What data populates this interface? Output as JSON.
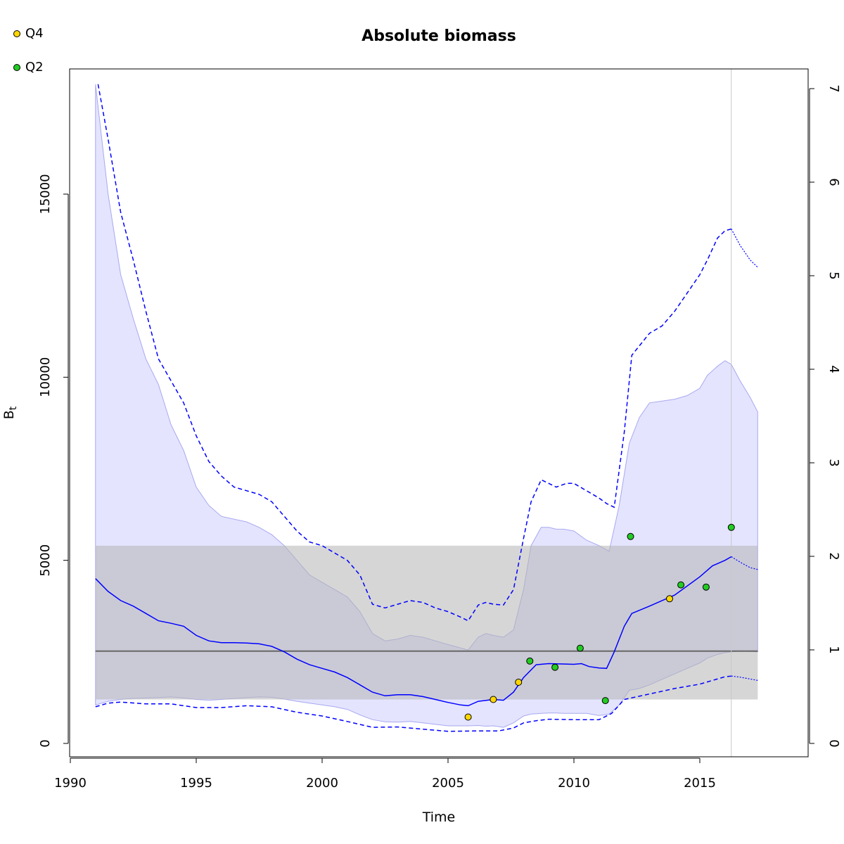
{
  "chart_data": {
    "type": "line",
    "title": "Absolute biomass",
    "xlabel": "Time",
    "ylabel": "B",
    "ylabel_sub": "t",
    "xlim": [
      1990,
      2019
    ],
    "ylim": [
      0,
      18000
    ],
    "y2lim": [
      0,
      7.2
    ],
    "x_ticks": [
      1990,
      1995,
      2000,
      2005,
      2010,
      2015
    ],
    "x_tick_labels": [
      "1990",
      "1995",
      "2000",
      "2005",
      "2010",
      "2015"
    ],
    "y_ticks": [
      0,
      5000,
      10000,
      15000
    ],
    "y_tick_labels": [
      "0",
      "5000",
      "10000",
      "15000"
    ],
    "y2_ticks": [
      0,
      1,
      2,
      3,
      4,
      5,
      6,
      7
    ],
    "y2_tick_labels": [
      "0",
      "1",
      "2",
      "3",
      "4",
      "5",
      "6",
      "7"
    ],
    "grid": false,
    "legend": {
      "placement": "top-left",
      "entries": [
        {
          "name": "Q4",
          "color": "#FFD700"
        },
        {
          "name": "Q2",
          "color": "#22CC22"
        }
      ]
    },
    "colors": {
      "line": "#0000FF",
      "ci_fill": "#E4E4FF",
      "ci_stroke": "#A8A8F0",
      "ref_band": "#B5B5B5",
      "ref_line": "#666666",
      "vline": "#C8C8C8"
    },
    "series": [
      {
        "role": "estimate",
        "x": [
          1991.0,
          1991.5,
          1992.0,
          1992.5,
          1993.0,
          1993.5,
          1994.0,
          1994.5,
          1995.0,
          1995.5,
          1996.0,
          1996.5,
          1997.0,
          1997.5,
          1998.0,
          1998.5,
          1999.0,
          1999.5,
          2000.0,
          2000.5,
          2001.0,
          2001.5,
          2002.0,
          2002.5,
          2003.0,
          2003.5,
          2004.0,
          2004.5,
          2005.0,
          2005.5,
          2005.8,
          2006.2,
          2006.8,
          2007.2,
          2007.6,
          2008.0,
          2008.5,
          2009.0,
          2009.5,
          2010.0,
          2010.3,
          2010.6,
          2011.0,
          2011.3,
          2011.6,
          2012.0,
          2012.3,
          2013.0,
          2013.5,
          2014.0,
          2014.5,
          2015.0,
          2015.5,
          2016.0,
          2016.25
        ],
        "y": [
          4500,
          4150,
          3900,
          3750,
          3550,
          3350,
          3280,
          3200,
          2950,
          2800,
          2750,
          2750,
          2740,
          2720,
          2650,
          2500,
          2300,
          2150,
          2050,
          1950,
          1800,
          1600,
          1400,
          1300,
          1330,
          1330,
          1280,
          1200,
          1120,
          1050,
          1030,
          1150,
          1200,
          1180,
          1400,
          1800,
          2150,
          2180,
          2170,
          2160,
          2180,
          2100,
          2060,
          2050,
          2500,
          3200,
          3550,
          3750,
          3900,
          4050,
          4300,
          4550,
          4850,
          5000,
          5100
        ]
      },
      {
        "role": "estimate-prediction",
        "x": [
          2016.25,
          2016.6,
          2017.0,
          2017.3
        ],
        "y": [
          5100,
          4950,
          4800,
          4750
        ]
      },
      {
        "role": "ci-lower-dashed",
        "x": [
          1991.0,
          1991.5,
          1992.0,
          1993.0,
          1994.0,
          1995.0,
          1996.0,
          1997.0,
          1998.0,
          1999.0,
          2000.0,
          2001.0,
          2002.0,
          2003.0,
          2004.0,
          2005.0,
          2006.0,
          2007.0,
          2007.6,
          2008.0,
          2008.5,
          2009.0,
          2010.0,
          2011.0,
          2011.5,
          2012.0,
          2013.0,
          2014.0,
          2015.0,
          2016.0,
          2016.25
        ],
        "y": [
          1000,
          1100,
          1130,
          1080,
          1080,
          980,
          980,
          1030,
          1000,
          850,
          750,
          600,
          440,
          450,
          390,
          330,
          340,
          340,
          420,
          560,
          620,
          660,
          650,
          650,
          820,
          1200,
          1350,
          1500,
          1620,
          1820,
          1840
        ]
      },
      {
        "role": "ci-lower-prediction",
        "x": [
          2016.25,
          2016.6,
          2017.0,
          2017.3
        ],
        "y": [
          1840,
          1810,
          1760,
          1720
        ]
      },
      {
        "role": "ci-upper-dashed",
        "x": [
          1991.1,
          1991.5,
          1992.0,
          1992.5,
          1993.0,
          1993.5,
          1994.0,
          1994.5,
          1995.0,
          1995.5,
          1996.0,
          1996.5,
          1997.0,
          1997.5,
          1998.0,
          1998.5,
          1999.0,
          1999.5,
          2000.0,
          2000.5,
          2001.0,
          2001.5,
          2002.0,
          2002.5,
          2003.0,
          2003.5,
          2004.0,
          2004.5,
          2005.0,
          2005.5,
          2005.8,
          2006.2,
          2006.5,
          2006.8,
          2007.2,
          2007.6,
          2008.0,
          2008.3,
          2008.7,
          2009.0,
          2009.3,
          2009.7,
          2010.0,
          2010.5,
          2011.0,
          2011.3,
          2011.6,
          2012.0,
          2012.3,
          2013.0,
          2013.5,
          2014.0,
          2014.5,
          2015.0,
          2015.3,
          2015.7,
          2016.0,
          2016.25
        ],
        "y": [
          18000,
          16500,
          14500,
          13200,
          11800,
          10500,
          9900,
          9300,
          8400,
          7700,
          7300,
          7000,
          6900,
          6800,
          6600,
          6200,
          5800,
          5500,
          5400,
          5200,
          5000,
          4600,
          3800,
          3700,
          3800,
          3900,
          3850,
          3700,
          3600,
          3450,
          3350,
          3780,
          3850,
          3800,
          3780,
          4200,
          5600,
          6600,
          7200,
          7100,
          7000,
          7100,
          7100,
          6900,
          6700,
          6550,
          6450,
          8500,
          10600,
          11200,
          11400,
          11800,
          12300,
          12800,
          13200,
          13800,
          14000,
          14050
        ]
      },
      {
        "role": "ci-upper-prediction",
        "x": [
          2016.25,
          2016.6,
          2017.0,
          2017.3
        ],
        "y": [
          14050,
          13600,
          13200,
          13000
        ]
      }
    ],
    "ci_band": {
      "x": [
        1991.0,
        1991.5,
        1992.0,
        1992.5,
        1993.0,
        1993.5,
        1994.0,
        1994.5,
        1995.0,
        1995.5,
        1996.0,
        1997.0,
        1997.5,
        1998.0,
        1998.5,
        1999.0,
        1999.5,
        2000.0,
        2000.5,
        2001.0,
        2001.5,
        2002.0,
        2002.5,
        2003.0,
        2003.5,
        2004.0,
        2004.5,
        2005.0,
        2005.8,
        2006.2,
        2006.5,
        2006.8,
        2007.2,
        2007.6,
        2008.0,
        2008.3,
        2008.7,
        2009.0,
        2009.3,
        2009.6,
        2010.0,
        2010.5,
        2011.0,
        2011.4,
        2011.8,
        2012.2,
        2012.6,
        2013.0,
        2013.5,
        2014.0,
        2014.5,
        2015.0,
        2015.3,
        2015.7,
        2016.0,
        2016.25,
        2016.6,
        2017.0,
        2017.3
      ],
      "lower": [
        1050,
        1150,
        1200,
        1230,
        1240,
        1250,
        1270,
        1240,
        1200,
        1180,
        1200,
        1250,
        1270,
        1260,
        1210,
        1150,
        1100,
        1050,
        1000,
        930,
        780,
        650,
        590,
        580,
        600,
        560,
        520,
        480,
        480,
        490,
        470,
        480,
        440,
        560,
        750,
        800,
        820,
        830,
        830,
        820,
        820,
        820,
        760,
        800,
        1050,
        1450,
        1500,
        1600,
        1750,
        1900,
        2050,
        2200,
        2330,
        2430,
        2480,
        2500,
        2520,
        2510,
        2500
      ],
      "upper": [
        18000,
        15000,
        12800,
        11600,
        10500,
        9800,
        8700,
        8000,
        7000,
        6500,
        6200,
        6050,
        5900,
        5700,
        5400,
        5000,
        4600,
        4400,
        4200,
        4000,
        3600,
        3000,
        2800,
        2850,
        2950,
        2900,
        2800,
        2700,
        2550,
        2900,
        3000,
        2950,
        2900,
        3100,
        4200,
        5400,
        5900,
        5900,
        5850,
        5850,
        5800,
        5550,
        5400,
        5250,
        6500,
        8200,
        8900,
        9300,
        9350,
        9400,
        9500,
        9700,
        10050,
        10300,
        10450,
        10350,
        9900,
        9450,
        9050
      ]
    },
    "reference": {
      "band": [
        1200,
        5400
      ],
      "band_x": [
        1991.0,
        2017.3
      ],
      "line": 2520,
      "vline_x": 2016.25
    },
    "observations": [
      {
        "x": 2005.8,
        "y": 720,
        "index": "Q4"
      },
      {
        "x": 2006.8,
        "y": 1200,
        "index": "Q4"
      },
      {
        "x": 2007.8,
        "y": 1670,
        "index": "Q4"
      },
      {
        "x": 2013.8,
        "y": 3950,
        "index": "Q4"
      },
      {
        "x": 2008.25,
        "y": 2250,
        "index": "Q2"
      },
      {
        "x": 2009.25,
        "y": 2080,
        "index": "Q2"
      },
      {
        "x": 2010.25,
        "y": 2600,
        "index": "Q2"
      },
      {
        "x": 2011.25,
        "y": 1170,
        "index": "Q2"
      },
      {
        "x": 2012.25,
        "y": 5650,
        "index": "Q2"
      },
      {
        "x": 2014.25,
        "y": 4330,
        "index": "Q2"
      },
      {
        "x": 2015.25,
        "y": 4270,
        "index": "Q2"
      },
      {
        "x": 2016.25,
        "y": 5900,
        "index": "Q2"
      }
    ]
  }
}
